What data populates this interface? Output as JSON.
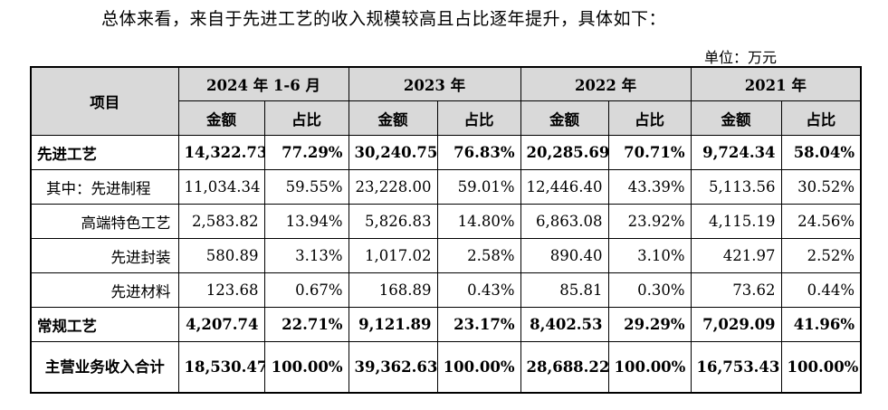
{
  "intro_text": "总体来看，来自于先进工艺的收入规模较高且占比逐年提升，具体如下：",
  "unit_text": "单位：万元",
  "table": {
    "item_header": "项目",
    "periods": [
      "2024 年 1-6 月",
      "2023 年",
      "2022 年",
      "2021 年"
    ],
    "sub_headers": [
      "金额",
      "占比"
    ],
    "rows": [
      {
        "label": "先进工艺",
        "bold": true,
        "indent": "none",
        "cells": [
          "14,322.73",
          "77.29%",
          "30,240.75",
          "76.83%",
          "20,285.69",
          "70.71%",
          "9,724.34",
          "58.04%"
        ]
      },
      {
        "label": "其中：先进制程",
        "bold": false,
        "indent": "small",
        "cells": [
          "11,034.34",
          "59.55%",
          "23,228.00",
          "59.01%",
          "12,446.40",
          "43.39%",
          "5,113.56",
          "30.52%"
        ]
      },
      {
        "label": "高端特色工艺",
        "bold": false,
        "indent": "right",
        "cells": [
          "2,583.82",
          "13.94%",
          "5,826.83",
          "14.80%",
          "6,863.08",
          "23.92%",
          "4,115.19",
          "24.56%"
        ]
      },
      {
        "label": "先进封装",
        "bold": false,
        "indent": "right",
        "cells": [
          "580.89",
          "3.13%",
          "1,017.02",
          "2.58%",
          "890.40",
          "3.10%",
          "421.97",
          "2.52%"
        ]
      },
      {
        "label": "先进材料",
        "bold": false,
        "indent": "right",
        "cells": [
          "123.68",
          "0.67%",
          "168.89",
          "0.43%",
          "85.81",
          "0.30%",
          "73.62",
          "0.44%"
        ]
      },
      {
        "label": "常规工艺",
        "bold": true,
        "indent": "none",
        "cells": [
          "4,207.74",
          "22.71%",
          "9,121.89",
          "23.17%",
          "8,402.53",
          "29.29%",
          "7,029.09",
          "41.96%"
        ]
      },
      {
        "label": "主营业务收入合计",
        "bold": true,
        "indent": "total",
        "cells": [
          "18,530.47",
          "100.00%",
          "39,362.63",
          "100.00%",
          "28,688.22",
          "100.00%",
          "16,753.43",
          "100.00%"
        ]
      }
    ]
  }
}
